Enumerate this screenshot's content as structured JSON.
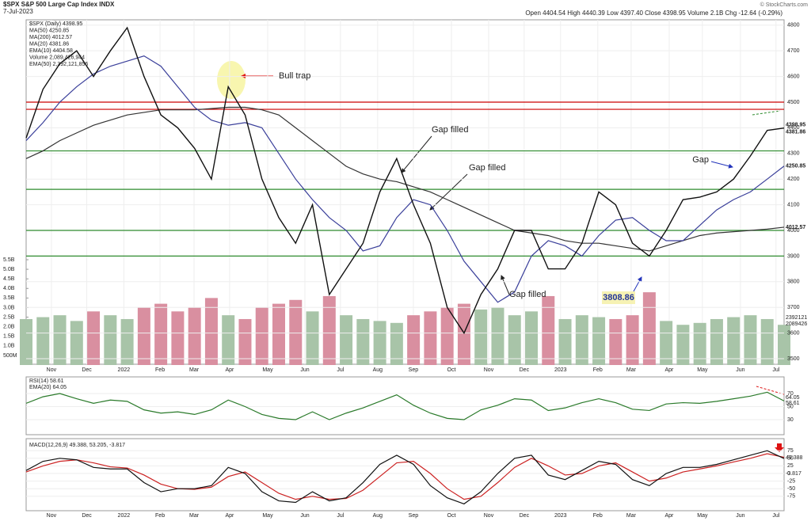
{
  "header": {
    "title": "$SPX S&P 500 Large Cap Index INDX",
    "date": "7-Jul-2023",
    "quote": "Open 4404.54 High 4440.39 Low 4397.40 Close 4398.95 Volume 2.1B Chg -12.64 (-0.29%)",
    "credit": "© StockCharts.com"
  },
  "chart_data": {
    "type": "line",
    "xlim": [
      0,
      45
    ],
    "xticks": [
      {
        "value": 1.5,
        "label": "Nov"
      },
      {
        "value": 3.6,
        "label": "Dec"
      },
      {
        "value": 5.8,
        "label": "2022"
      },
      {
        "value": 7.95,
        "label": "Feb"
      },
      {
        "value": 9.97,
        "label": "Mar"
      },
      {
        "value": 12.08,
        "label": "Apr"
      },
      {
        "value": 14.34,
        "label": "May"
      },
      {
        "value": 16.55,
        "label": "Jun"
      },
      {
        "value": 18.66,
        "label": "Jul"
      },
      {
        "value": 20.87,
        "label": "Aug"
      },
      {
        "value": 22.99,
        "label": "Sep"
      },
      {
        "value": 25.25,
        "label": "Oct"
      },
      {
        "value": 27.46,
        "label": "Nov"
      },
      {
        "value": 29.57,
        "label": "Dec"
      },
      {
        "value": 31.73,
        "label": "2023"
      },
      {
        "value": 33.94,
        "label": "Feb"
      },
      {
        "value": 35.92,
        "label": "Mar"
      },
      {
        "value": 38.18,
        "label": "Apr"
      },
      {
        "value": 40.15,
        "label": "May"
      },
      {
        "value": 42.41,
        "label": "Jun"
      },
      {
        "value": 44.52,
        "label": "Jul"
      }
    ],
    "price": {
      "ylim": [
        3480,
        4820
      ],
      "yticks": [
        3500,
        3600,
        3700,
        3800,
        3900,
        4000,
        4100,
        4200,
        4300,
        4400,
        4500,
        4600,
        4700,
        4800
      ],
      "legend": [
        "$SPX (Daily) 4398.95",
        "MA(50) 4250.85",
        "MA(200) 4012.57",
        "MA(20) 4381.86",
        "EMA(10) 4404.58",
        "Volume 2,089,426,944",
        "EMA(50) 2,392,121,856"
      ],
      "series": [
        {
          "name": "$SPX",
          "color": "#111111",
          "values": [
            4360,
            4550,
            4650,
            4700,
            4600,
            4700,
            4790,
            4600,
            4450,
            4400,
            4320,
            4200,
            4560,
            4450,
            4200,
            4050,
            3950,
            4100,
            3750,
            3850,
            3950,
            4150,
            4280,
            4100,
            3950,
            3700,
            3600,
            3750,
            3850,
            4000,
            4000,
            3850,
            3850,
            3950,
            4150,
            4100,
            3950,
            3900,
            4000,
            4120,
            4130,
            4150,
            4200,
            4290,
            4390,
            4398.95
          ]
        },
        {
          "name": "MA(50)",
          "color": "#3a3f9a",
          "values": [
            4350,
            4420,
            4500,
            4560,
            4610,
            4640,
            4660,
            4680,
            4640,
            4560,
            4480,
            4430,
            4410,
            4420,
            4400,
            4300,
            4200,
            4120,
            4050,
            4000,
            3920,
            3940,
            4050,
            4120,
            4100,
            4000,
            3880,
            3800,
            3720,
            3760,
            3900,
            3960,
            3940,
            3900,
            3980,
            4040,
            4050,
            4000,
            3960,
            3960,
            4020,
            4080,
            4120,
            4150,
            4200,
            4250.85
          ]
        },
        {
          "name": "MA(200)",
          "color": "#333333",
          "values": [
            4280,
            4310,
            4350,
            4380,
            4410,
            4430,
            4450,
            4460,
            4470,
            4470,
            4470,
            4475,
            4480,
            4480,
            4470,
            4450,
            4400,
            4350,
            4300,
            4250,
            4220,
            4200,
            4190,
            4170,
            4150,
            4120,
            4090,
            4060,
            4030,
            4000,
            3990,
            3980,
            3960,
            3950,
            3950,
            3940,
            3930,
            3920,
            3940,
            3960,
            3980,
            3990,
            3995,
            4000,
            4005,
            4012.57
          ]
        }
      ],
      "levels": [
        {
          "value": 4500,
          "color": "#cc0000"
        },
        {
          "value": 4472,
          "color": "#cc0000"
        },
        {
          "value": 4310,
          "color": "#2e8b2e"
        },
        {
          "value": 4160,
          "color": "#2e8b2e"
        },
        {
          "value": 4000,
          "color": "#2e8b2e"
        },
        {
          "value": 3900,
          "color": "#2e8b2e"
        }
      ],
      "annotations": [
        "Bull trap",
        "Gap filled",
        "Gap filled",
        "Gap filled",
        "Gap"
      ],
      "low_label": 3808.86,
      "tags": [
        "4398.95",
        "4381.86",
        "4250.85",
        "4012.57"
      ]
    },
    "volume": {
      "ylim": [
        0,
        5.5
      ],
      "yticks": [
        {
          "value": 0.5,
          "label": "500M"
        },
        {
          "value": 1,
          "label": "1.0B"
        },
        {
          "value": 1.5,
          "label": "1.5B"
        },
        {
          "value": 2,
          "label": "2.0B"
        },
        {
          "value": 2.5,
          "label": "2.5B"
        },
        {
          "value": 3,
          "label": "3.0B"
        },
        {
          "value": 3.5,
          "label": "3.5B"
        },
        {
          "value": 4,
          "label": "4.0B"
        },
        {
          "value": 4.5,
          "label": "4.5B"
        },
        {
          "value": 5,
          "label": "5.0B"
        },
        {
          "value": 5.5,
          "label": "5.5B"
        }
      ],
      "values": [
        2.4,
        2.5,
        2.6,
        2.3,
        2.8,
        2.6,
        2.4,
        3.0,
        3.2,
        2.8,
        3.0,
        3.5,
        2.6,
        2.4,
        3.0,
        3.2,
        3.4,
        2.8,
        3.6,
        2.6,
        2.4,
        2.3,
        2.2,
        2.6,
        2.8,
        3.0,
        3.2,
        2.9,
        3.0,
        2.6,
        2.8,
        3.6,
        2.4,
        2.6,
        2.5,
        2.4,
        2.6,
        3.8,
        2.3,
        2.1,
        2.2,
        2.4,
        2.5,
        2.6,
        2.4,
        2.1
      ],
      "up_color": "#a8c4a8",
      "down_color": "#d98fa0",
      "tags": [
        "2392121",
        "2089426"
      ]
    },
    "rsi": {
      "legend": [
        "RSI(14) 58.61",
        "EMA(20) 64.05"
      ],
      "ylim": [
        10,
        90
      ],
      "yticks": [
        30,
        50,
        70
      ],
      "series": [
        {
          "name": "RSI(14)",
          "color": "#2a7a2a",
          "values": [
            55,
            65,
            70,
            62,
            55,
            60,
            58,
            45,
            40,
            42,
            38,
            45,
            60,
            50,
            38,
            32,
            30,
            42,
            30,
            40,
            48,
            58,
            68,
            52,
            40,
            32,
            30,
            45,
            52,
            62,
            60,
            44,
            48,
            56,
            62,
            56,
            46,
            44,
            54,
            56,
            55,
            58,
            62,
            66,
            72,
            58.61
          ]
        }
      ],
      "tags": [
        "64.05",
        "58.61"
      ]
    },
    "macd": {
      "legend": "MACD(12,26,9) 49.388, 53.205, -3.817",
      "ylim": [
        -125,
        125
      ],
      "yticks": [
        -75,
        -50,
        -25,
        0,
        25,
        50,
        75
      ],
      "series": [
        {
          "name": "MACD",
          "color": "#111111",
          "values": [
            10,
            40,
            50,
            45,
            20,
            15,
            15,
            -30,
            -60,
            -50,
            -50,
            -40,
            20,
            0,
            -60,
            -90,
            -95,
            -60,
            -90,
            -80,
            -30,
            30,
            60,
            30,
            -40,
            -80,
            -100,
            -60,
            0,
            50,
            60,
            -5,
            -20,
            10,
            40,
            30,
            -20,
            -40,
            0,
            20,
            20,
            30,
            45,
            60,
            75,
            49.388
          ]
        },
        {
          "name": "Signal",
          "color": "#cc2222",
          "values": [
            5,
            25,
            40,
            45,
            35,
            22,
            18,
            -5,
            -35,
            -50,
            -52,
            -45,
            -10,
            5,
            -30,
            -65,
            -85,
            -75,
            -85,
            -82,
            -55,
            -10,
            35,
            40,
            0,
            -50,
            -85,
            -75,
            -30,
            20,
            50,
            25,
            -5,
            0,
            25,
            35,
            5,
            -25,
            -15,
            5,
            15,
            25,
            38,
            50,
            65,
            53.205
          ]
        }
      ],
      "tags": [
        "49.388",
        "-3.817"
      ]
    }
  }
}
